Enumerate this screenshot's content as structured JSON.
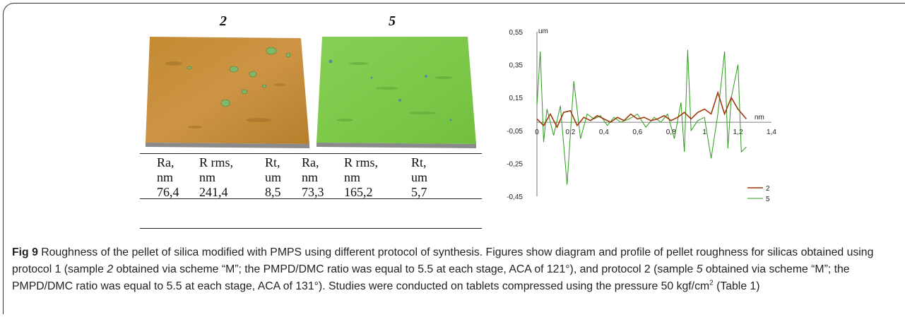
{
  "figure": {
    "label_left": "2",
    "label_right": "5",
    "colors": {
      "sample2_surface": "#c8913a",
      "sample5_surface": "#7fcb4c",
      "line2": "#a0380c",
      "line5": "#2e9a1d"
    }
  },
  "table": {
    "headers_line1": [
      "Ra,",
      "R rms,",
      "Rt,",
      "Ra,",
      "R rms,",
      "Rt,"
    ],
    "headers_line2": [
      "nm",
      "nm",
      "um",
      "nm",
      "nm",
      "um"
    ],
    "values": [
      "76,4",
      "241,4",
      "8,5",
      "73,3",
      "165,2",
      "5,7"
    ]
  },
  "chart_data": {
    "type": "line",
    "xlabel": "nm",
    "ylabel": "um",
    "xlim": [
      0,
      1.4
    ],
    "ylim": [
      -0.45,
      0.55
    ],
    "xticks": [
      "0",
      "0,2",
      "0,4",
      "0,6",
      "0,8",
      "1",
      "1,2",
      "1,4"
    ],
    "yticks": [
      "0,55",
      "0,35",
      "0,15",
      "-0,05",
      "-0,25",
      "-0,45"
    ],
    "legend_position": "bottom-right",
    "series": [
      {
        "name": "2",
        "color": "#a0380c",
        "x": [
          0,
          0.04,
          0.08,
          0.12,
          0.16,
          0.2,
          0.24,
          0.28,
          0.32,
          0.36,
          0.4,
          0.44,
          0.48,
          0.52,
          0.56,
          0.6,
          0.64,
          0.68,
          0.72,
          0.76,
          0.8,
          0.84,
          0.88,
          0.92,
          0.96,
          1.0,
          1.04,
          1.08,
          1.12,
          1.16,
          1.2,
          1.25
        ],
        "y": [
          0.02,
          -0.02,
          0.05,
          -0.03,
          0.06,
          0.07,
          -0.02,
          0.03,
          0.01,
          0.04,
          0.02,
          0.0,
          0.03,
          0.01,
          0.05,
          0.02,
          0.03,
          0.01,
          0.02,
          0.04,
          0.01,
          0.03,
          0.06,
          0.02,
          0.06,
          0.08,
          0.05,
          0.18,
          0.05,
          0.15,
          0.08,
          0.02
        ]
      },
      {
        "name": "5",
        "color": "#2e9a1d",
        "x": [
          0,
          0.02,
          0.04,
          0.06,
          0.1,
          0.14,
          0.18,
          0.22,
          0.26,
          0.3,
          0.34,
          0.38,
          0.42,
          0.46,
          0.5,
          0.55,
          0.6,
          0.65,
          0.7,
          0.74,
          0.78,
          0.82,
          0.86,
          0.88,
          0.9,
          0.92,
          0.96,
          1.0,
          1.04,
          1.08,
          1.12,
          1.14,
          1.16,
          1.2,
          1.22,
          1.25
        ],
        "y": [
          0.1,
          0.43,
          -0.12,
          0.08,
          -0.08,
          0.1,
          -0.38,
          0.25,
          -0.1,
          0.05,
          0.02,
          0.04,
          -0.02,
          0.03,
          0.0,
          0.02,
          0.05,
          -0.03,
          0.03,
          0.0,
          0.05,
          -0.1,
          0.12,
          -0.18,
          0.44,
          -0.05,
          0.01,
          0.03,
          -0.22,
          0.05,
          0.43,
          -0.16,
          0.15,
          0.35,
          -0.18,
          -0.15
        ]
      }
    ]
  },
  "caption": {
    "fig_label": "Fig 9",
    "text_part1": " Roughness of the pellet of silica modified with PMPS using different protocol of synthesis. Figures show diagram and profile of pellet roughness for silicas obtained using protocol 1 (sample ",
    "sample_a": "2",
    "text_part2": " obtained via scheme “M”; the PMPD/DMC ratio was equal to 5.5 at each stage, ACA of 121°), and protocol 2 (sample ",
    "sample_b": "5",
    "text_part3": " obtained via scheme “M”; the PMPD/DMC ratio was equal to 5.5 at each stage, ACA of 131°). Studies were conducted on tablets compressed using the pressure 50 kgf/cm",
    "superscript": "2",
    "text_part4": " (Table 1)"
  }
}
